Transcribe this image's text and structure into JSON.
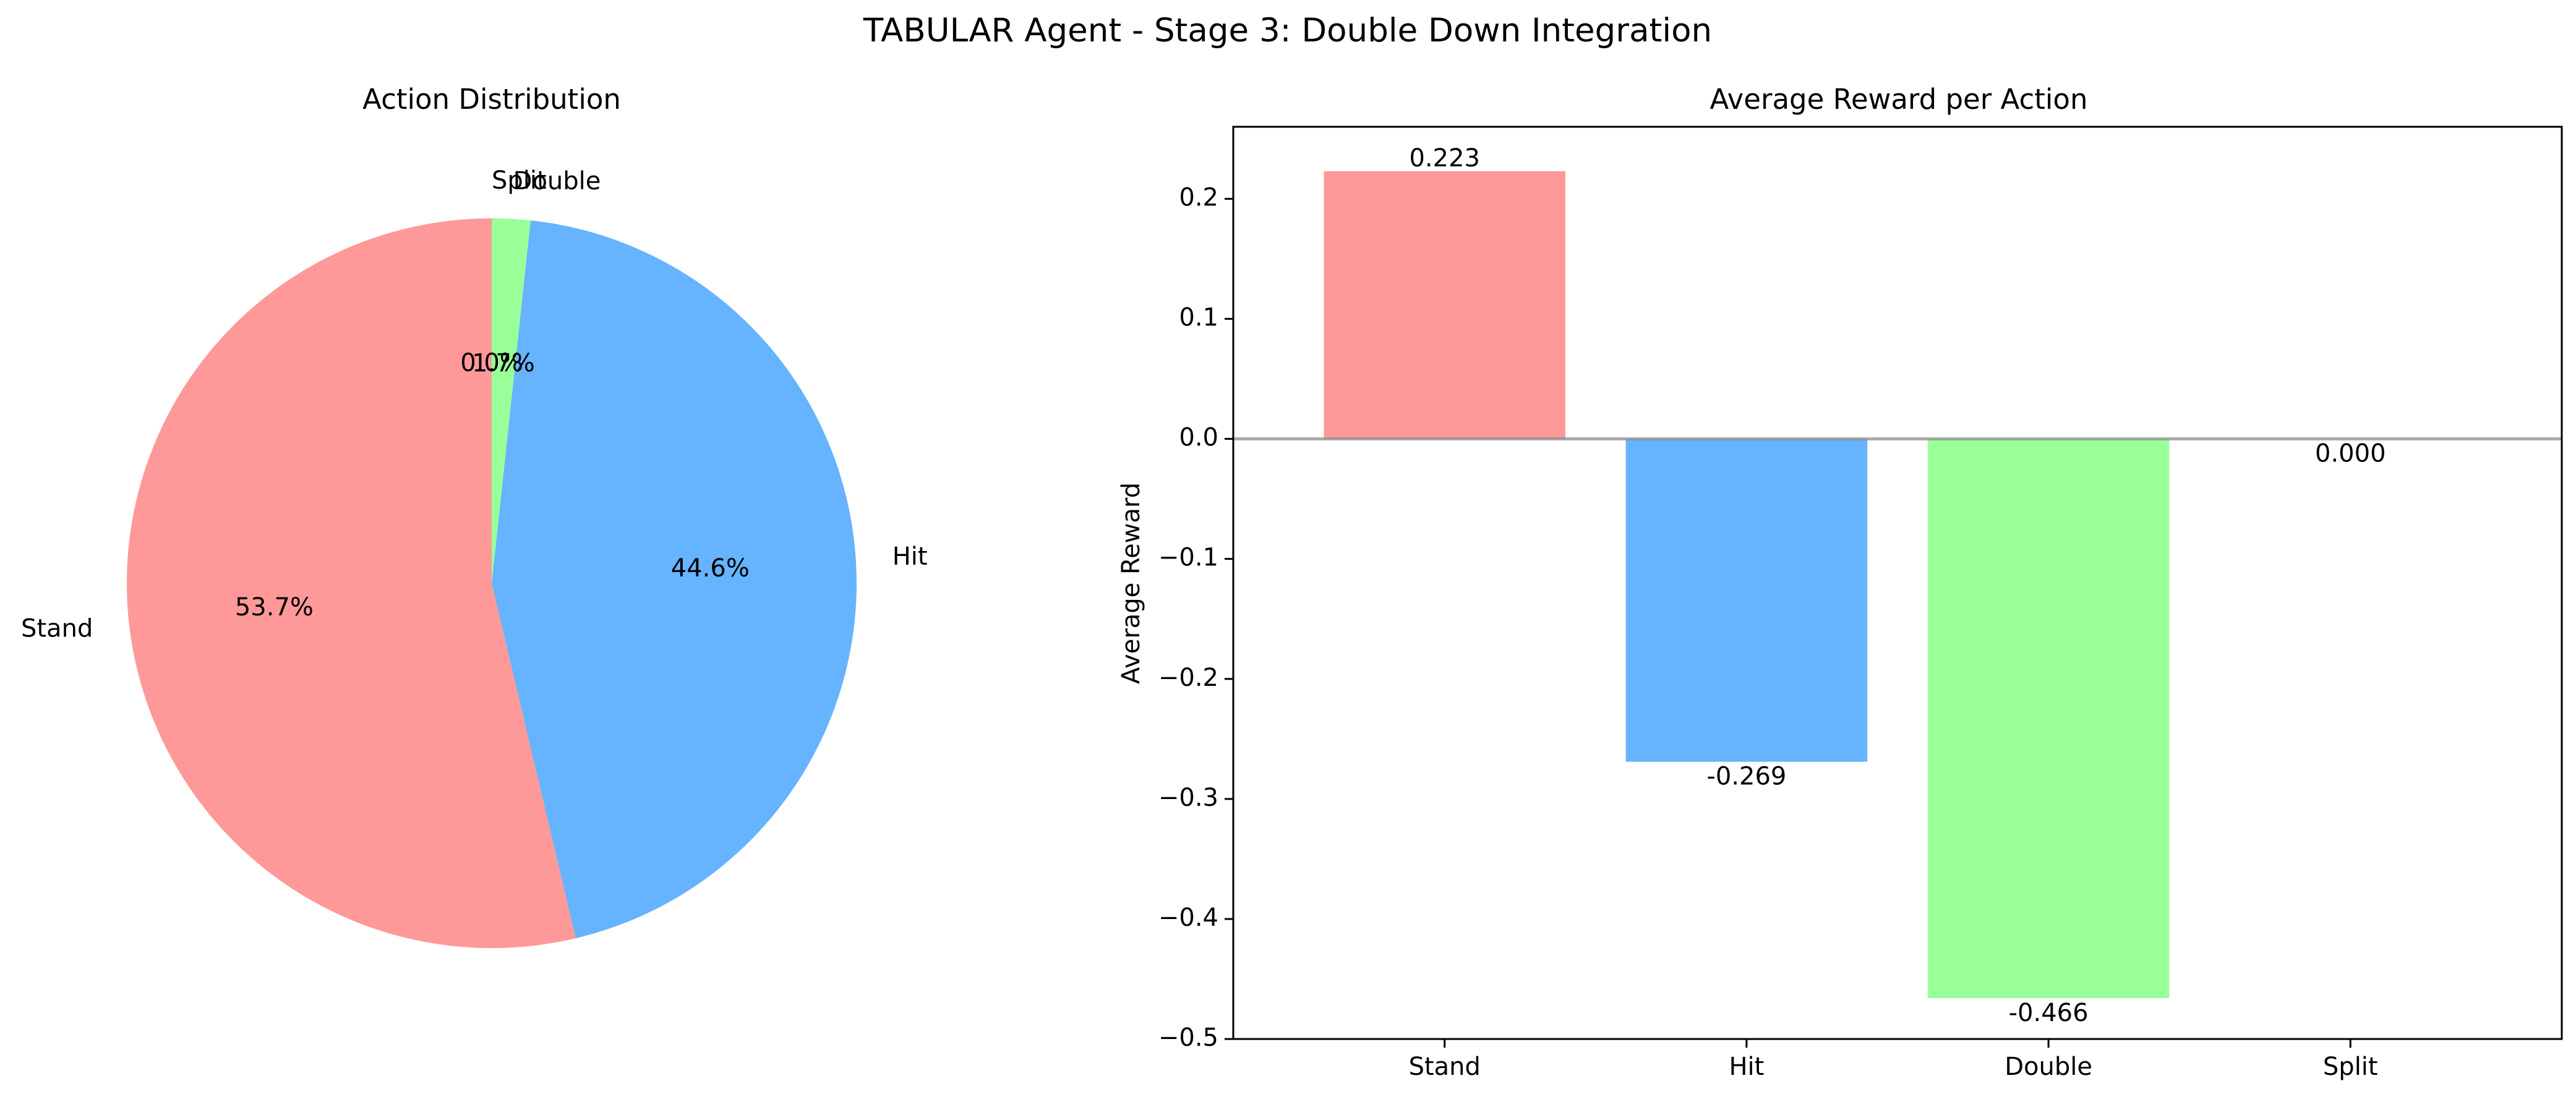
{
  "figure": {
    "title": "TABULAR Agent - Stage 3: Double Down Integration"
  },
  "chart_data": [
    {
      "type": "pie",
      "title": "Action Distribution",
      "start_angle_deg": 90,
      "direction": "counterclockwise",
      "slices": [
        {
          "label": "Stand",
          "value": 53.7,
          "pct_label": "53.7%",
          "color": "#ff9999"
        },
        {
          "label": "Hit",
          "value": 44.6,
          "pct_label": "44.6%",
          "color": "#66b3ff"
        },
        {
          "label": "Double",
          "value": 1.7,
          "pct_label": "1.7%",
          "color": "#99ff99"
        },
        {
          "label": "Split",
          "value": 0.0,
          "pct_label": "0.0%",
          "color": "#ffcc99"
        }
      ]
    },
    {
      "type": "bar",
      "title": "Average Reward per Action",
      "xlabel": "",
      "ylabel": "Average Reward",
      "categories": [
        "Stand",
        "Hit",
        "Double",
        "Split"
      ],
      "values": [
        0.223,
        -0.269,
        -0.466,
        0.0
      ],
      "value_labels": [
        "0.223",
        "-0.269",
        "-0.466",
        "0.000"
      ],
      "colors": [
        "#ff9999",
        "#66b3ff",
        "#99ff99",
        "#ffcc99"
      ],
      "ylim": [
        -0.5,
        0.26
      ],
      "yticks": [
        0.2,
        0.1,
        0.0,
        -0.1,
        -0.2,
        -0.3,
        -0.4,
        -0.5
      ],
      "ytick_labels": [
        "0.2",
        "0.1",
        "0.0",
        "−0.1",
        "−0.2",
        "−0.3",
        "−0.4",
        "−0.5"
      ],
      "zero_line": true,
      "grid": false
    }
  ]
}
